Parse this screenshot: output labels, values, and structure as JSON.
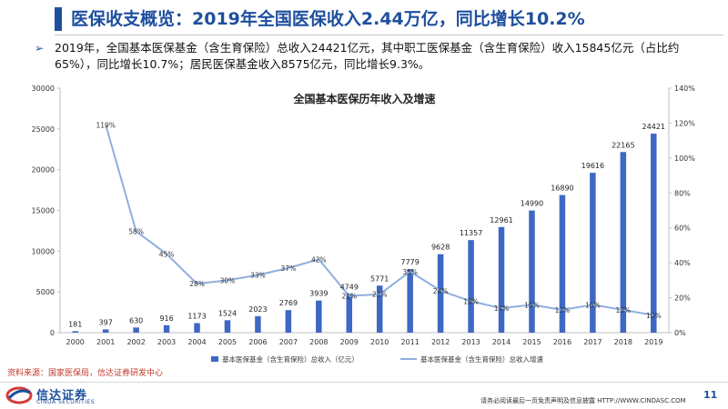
{
  "page": {
    "title": "医保收支概览：2019年全国医保收入2.44万亿，同比增长10.2%",
    "bullet_marker": "➢",
    "bullet": "2019年，全国基本医保基金（含生育保险）总收入24421亿元，其中职工医保基金（含生育保险）收入15845亿元（占比约65%），同比增长10.7%；居民医保基金收入8575亿元，同比增长9.3%。",
    "source": "资料来源：国家医保局，信达证券研发中心",
    "logo_cn": "信达证券",
    "logo_en": "CINDA SECURITIES",
    "disclaimer": "请务必阅读最后一页免责声明及信息披露  HTTP://WWW.CINDASC.COM",
    "page_number": "11"
  },
  "colors": {
    "bar": "#3e68c4",
    "line": "#8faee0",
    "brand": "#1d4f9e"
  },
  "chart_data": {
    "type": "bar",
    "title": "全国基本医保历年收入及增速",
    "categories": [
      "2000",
      "2001",
      "2002",
      "2003",
      "2004",
      "2005",
      "2006",
      "2007",
      "2008",
      "2009",
      "2010",
      "2011",
      "2012",
      "2013",
      "2014",
      "2015",
      "2016",
      "2017",
      "2018",
      "2019"
    ],
    "series": [
      {
        "name": "基本医保基金（含生育保险）总收入（亿元）",
        "type": "bar",
        "axis": "left",
        "values": [
          181,
          397,
          630,
          916,
          1173,
          1524,
          2023,
          2769,
          3939,
          4749,
          5771,
          7779,
          9628,
          11357,
          12961,
          14990,
          16890,
          19616,
          22165,
          24421
        ],
        "labels": [
          "181",
          "397",
          "630",
          "916",
          "1173",
          "1524",
          "2023",
          "2769",
          "3939",
          "4749",
          "5771",
          "7779",
          "9628",
          "11357",
          "12961",
          "14990",
          "16890",
          "19616",
          "22165",
          "24421"
        ]
      },
      {
        "name": "基本医保基金（含生育保险）总收入增速",
        "type": "line",
        "axis": "right",
        "values": [
          null,
          119,
          58,
          45,
          28,
          30,
          33,
          37,
          42,
          21,
          22,
          35,
          24,
          18,
          14,
          16,
          13,
          16,
          13,
          10
        ],
        "labels": [
          "",
          "119%",
          "58%",
          "45%",
          "28%",
          "30%",
          "33%",
          "37%",
          "42%",
          "21%",
          "22%",
          "35%",
          "24%",
          "18%",
          "14%",
          "16%",
          "13%",
          "16%",
          "13%",
          "10%"
        ]
      }
    ],
    "ylim": [
      0,
      30000
    ],
    "yticks": [
      "0",
      "5000",
      "10000",
      "15000",
      "20000",
      "25000",
      "30000"
    ],
    "y2lim": [
      0,
      140
    ],
    "y2ticks": [
      "0%",
      "20%",
      "40%",
      "60%",
      "80%",
      "100%",
      "120%",
      "140%"
    ],
    "legend_position": "bottom",
    "grid": false
  }
}
